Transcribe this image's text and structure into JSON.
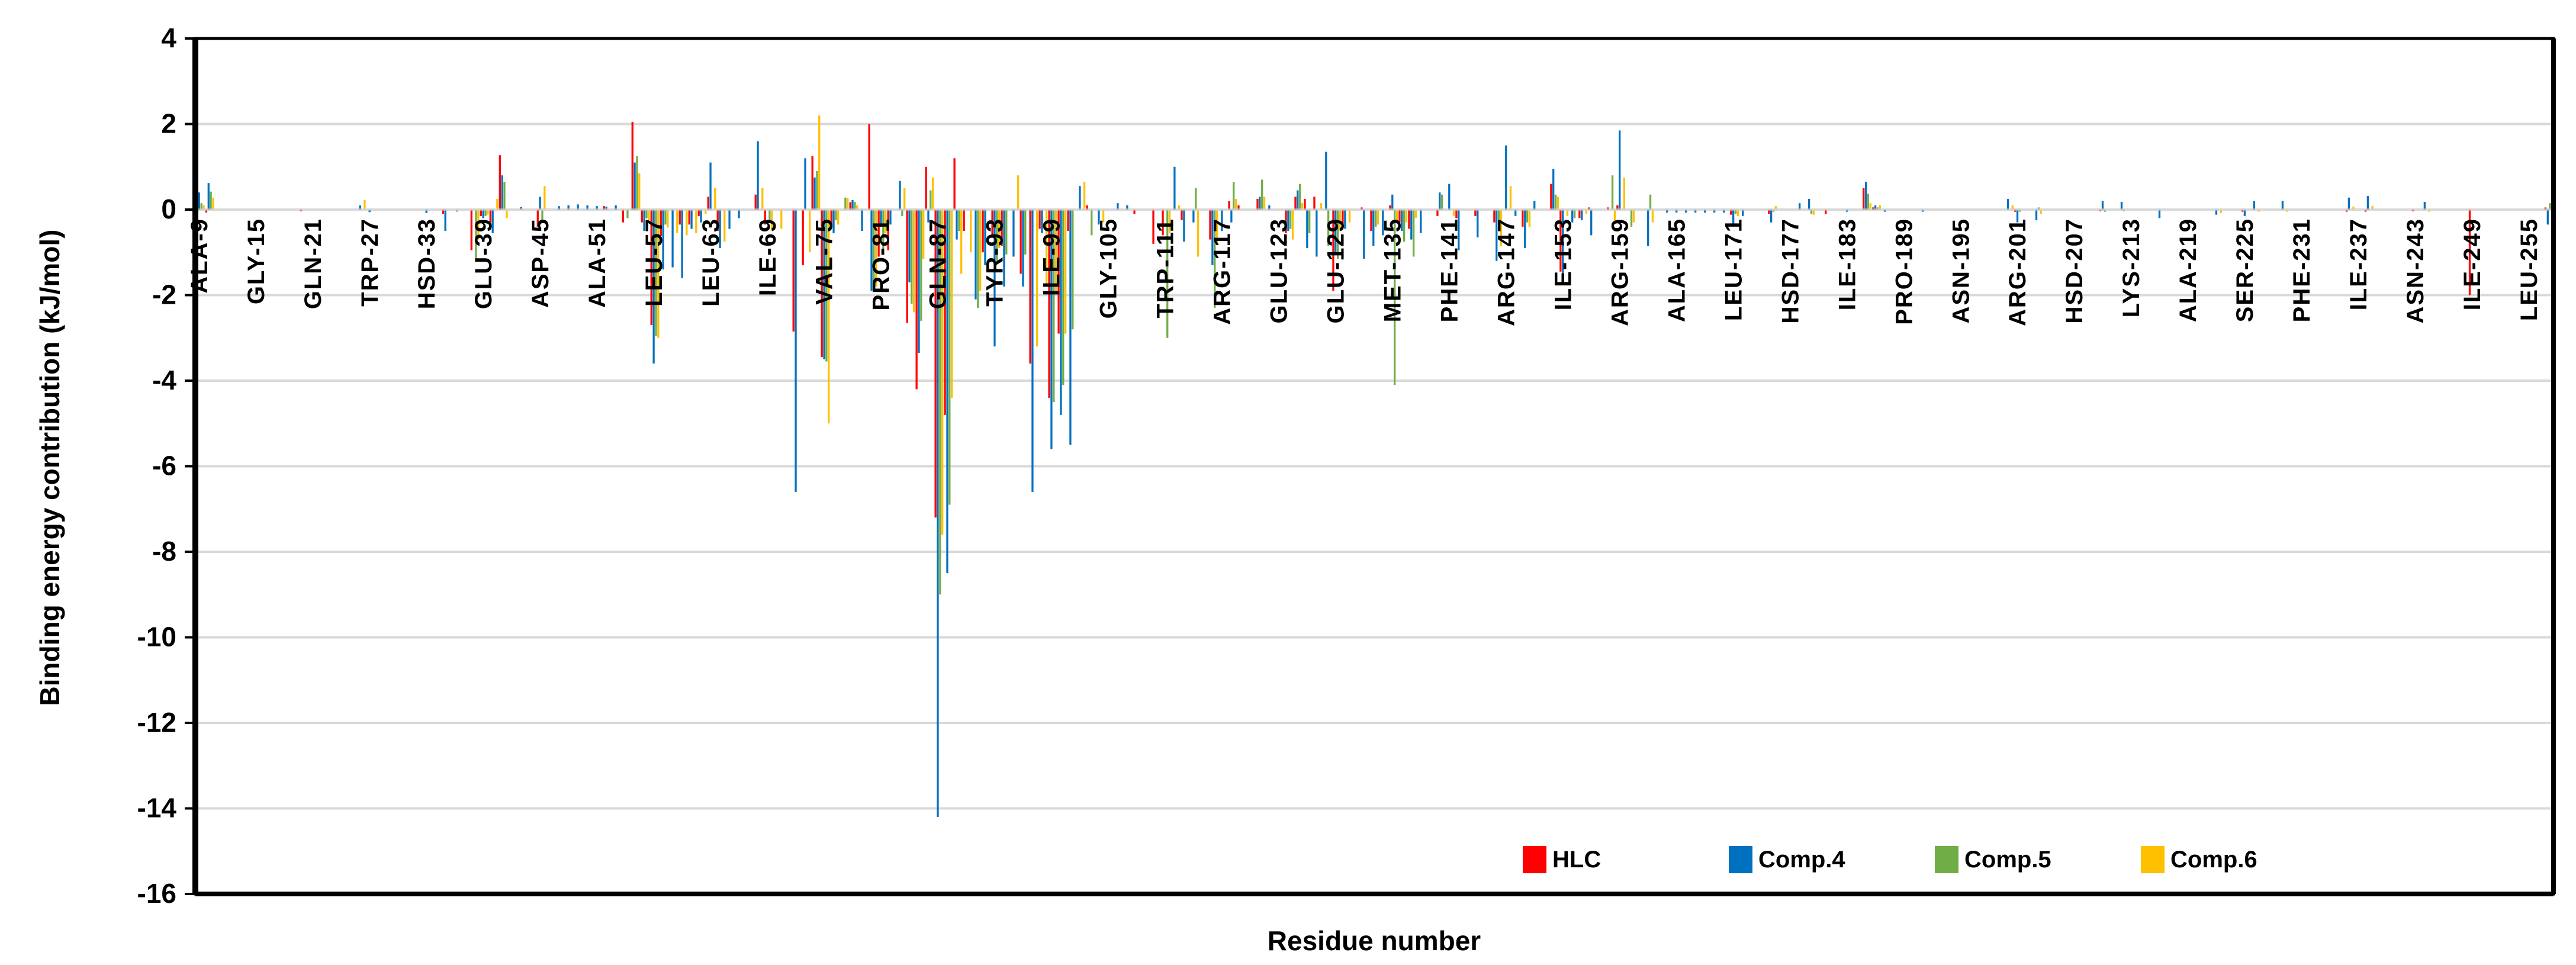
{
  "chart_data": {
    "type": "bar",
    "title": "",
    "xlabel": "Residue number",
    "ylabel": "Binding energy contribution (kJ/mol)",
    "ylim": [
      -16,
      4
    ],
    "yticks": [
      4,
      2,
      0,
      -2,
      -4,
      -6,
      -8,
      -10,
      -12,
      -14,
      -16
    ],
    "grid": "horizontal-gray",
    "legend_position": "bottom-right-inside",
    "x_range": {
      "start": 9,
      "end": 257
    },
    "x_label_every": 6,
    "x_tick_labels": [
      "ALA-9",
      "GLY-15",
      "GLN-21",
      "TRP-27",
      "HSD-33",
      "GLU-39",
      "ASP-45",
      "ALA-51",
      "LEU-57",
      "LEU-63",
      "ILE-69",
      "VAL-75",
      "PRO-81",
      "GLN-87",
      "TYR-93",
      "ILE-99",
      "GLY-105",
      "TRP-111",
      "ARG-117",
      "GLU-123",
      "GLU-129",
      "MET-135",
      "PHE-141",
      "ARG-147",
      "ILE-153",
      "ARG-159",
      "ALA-165",
      "LEU-171",
      "HSD-177",
      "ILE-183",
      "PRO-189",
      "ASN-195",
      "ARG-201",
      "HSD-207",
      "LYS-213",
      "ALA-219",
      "SER-225",
      "PHE-231",
      "ILE-237",
      "ASN-243",
      "ILE-249",
      "LEU-255"
    ],
    "values_note": "values in kJ/mol estimated from gridlines; residues not listed are ~0",
    "series": [
      {
        "name": "HLC",
        "color": "#FF0000",
        "values_by_residue": {
          "9": -0.05,
          "10": -0.07,
          "20": -0.04,
          "35": -0.1,
          "38": -0.95,
          "39": -0.15,
          "40": -0.3,
          "41": 1.27,
          "45": -0.4,
          "52": 0.08,
          "54": -0.3,
          "55": 2.05,
          "56": -0.3,
          "57": -2.7,
          "58": -0.62,
          "60": -0.35,
          "61": -0.35,
          "62": -0.15,
          "63": 0.3,
          "64": -0.5,
          "68": 0.35,
          "69": -0.35,
          "72": -2.85,
          "73": -1.3,
          "74": 1.25,
          "75": -3.45,
          "76": -0.4,
          "78": 0.17,
          "80": 2.0,
          "81": -1.1,
          "82": -0.95,
          "84": -2.65,
          "85": -4.2,
          "86": 1.0,
          "87": -7.2,
          "88": -4.8,
          "89": 1.2,
          "90": -0.5,
          "92": -1.0,
          "93": -0.6,
          "94": -0.85,
          "96": -1.5,
          "97": -3.6,
          "98": -0.45,
          "99": -4.4,
          "100": -2.9,
          "101": -0.5,
          "103": 0.1,
          "108": -0.1,
          "110": -0.8,
          "111": -0.6,
          "113": -0.25,
          "116": -0.7,
          "118": 0.2,
          "119": 0.1,
          "121": 0.25,
          "124": -0.55,
          "125": 0.3,
          "126": 0.25,
          "127": 0.3,
          "129": -1.9,
          "130": -0.35,
          "132": 0.05,
          "133": -0.5,
          "135": 0.1,
          "136": -0.3,
          "137": -0.45,
          "140": -0.15,
          "142": -0.2,
          "144": -0.15,
          "146": -0.3,
          "149": -0.4,
          "152": 0.6,
          "153": -1.45,
          "155": -0.2,
          "156": 0.05,
          "158": 0.05,
          "159": 0.1,
          "171": -0.12,
          "175": -0.1,
          "181": -0.1,
          "185": 0.5,
          "186": 0.05,
          "201": -0.05,
          "210": -0.04,
          "225": -0.05,
          "236": -0.05,
          "238": -0.05,
          "243": -0.04,
          "249": -2.0,
          "257": 0.05
        }
      },
      {
        "name": "Comp.4",
        "color": "#0070C0",
        "values_by_residue": {
          "9": 0.4,
          "10": 0.62,
          "26": 0.1,
          "27": -0.06,
          "33": -0.08,
          "35": -0.5,
          "39": -0.2,
          "40": -0.55,
          "41": 0.8,
          "43": 0.06,
          "45": 0.3,
          "47": 0.08,
          "48": 0.1,
          "49": 0.12,
          "50": 0.1,
          "51": 0.08,
          "52": 0.07,
          "53": 0.1,
          "55": 1.1,
          "56": -0.5,
          "57": -3.6,
          "58": -1.4,
          "59": -1.35,
          "60": -1.6,
          "61": -0.45,
          "62": -0.3,
          "63": 1.1,
          "64": -0.9,
          "65": -0.45,
          "66": -0.2,
          "68": 1.6,
          "72": -6.6,
          "73": 1.2,
          "74": 0.75,
          "75": -3.5,
          "76": -0.55,
          "78": 0.22,
          "79": -0.5,
          "80": -1.9,
          "81": -0.4,
          "82": -0.35,
          "83": 0.67,
          "84": -1.7,
          "85": -3.35,
          "86": -0.3,
          "87": -14.2,
          "88": -8.5,
          "89": -0.7,
          "91": -2.1,
          "92": -1.3,
          "93": -3.2,
          "94": -1.8,
          "95": -1.1,
          "96": -1.8,
          "97": -6.6,
          "98": -0.55,
          "99": -5.6,
          "100": -4.8,
          "101": -5.5,
          "102": 0.55,
          "104": -0.35,
          "106": 0.15,
          "107": 0.1,
          "112": 1.0,
          "113": -0.75,
          "114": -0.3,
          "116": -1.3,
          "117": -0.5,
          "118": -0.3,
          "121": 0.3,
          "122": 0.1,
          "124": -0.5,
          "125": 0.45,
          "126": -0.9,
          "127": -1.1,
          "128": 1.35,
          "129": -1.0,
          "130": -0.45,
          "132": -1.15,
          "133": -0.85,
          "134": -0.6,
          "135": 0.35,
          "136": -0.5,
          "137": -0.7,
          "138": -0.55,
          "140": 0.4,
          "141": 0.6,
          "142": -0.95,
          "144": -0.65,
          "146": -1.2,
          "147": 1.5,
          "148": -0.15,
          "149": -0.9,
          "150": 0.2,
          "152": 0.95,
          "153": -1.75,
          "154": -0.3,
          "155": -0.25,
          "156": -0.6,
          "159": 1.85,
          "162": -0.85,
          "164": -0.07,
          "165": -0.07,
          "166": -0.07,
          "167": -0.07,
          "168": -0.07,
          "169": -0.07,
          "170": -0.07,
          "171": -0.35,
          "172": -0.15,
          "175": -0.3,
          "178": 0.15,
          "179": 0.25,
          "183": -0.05,
          "185": 0.65,
          "186": 0.1,
          "187": -0.05,
          "191": -0.05,
          "200": 0.25,
          "201": -0.3,
          "203": -0.25,
          "210": 0.2,
          "212": 0.18,
          "216": -0.2,
          "222": -0.12,
          "225": -0.15,
          "226": 0.2,
          "229": 0.2,
          "236": 0.28,
          "238": 0.32,
          "244": 0.18,
          "257": -0.35
        }
      },
      {
        "name": "Comp.5",
        "color": "#70AD47",
        "values_by_residue": {
          "9": 0.15,
          "10": 0.42,
          "36": -0.05,
          "38": -1.2,
          "39": -0.15,
          "41": 0.65,
          "45": -0.25,
          "54": -0.2,
          "55": 1.25,
          "56": -0.2,
          "57": -2.95,
          "58": -0.35,
          "69": -0.3,
          "74": 0.9,
          "75": -3.55,
          "76": -0.25,
          "77": 0.28,
          "78": 0.18,
          "80": -1.85,
          "81": -1.05,
          "83": -0.15,
          "84": -2.2,
          "85": -2.6,
          "86": 0.45,
          "87": -9.0,
          "88": -6.9,
          "89": -0.5,
          "91": -2.3,
          "93": -1.2,
          "94": -1.05,
          "96": -1.05,
          "99": -4.5,
          "100": -4.1,
          "101": -2.8,
          "103": -0.6,
          "111": -3.0,
          "114": 0.5,
          "116": -2.3,
          "118": 0.65,
          "121": 0.7,
          "124": -0.45,
          "125": 0.6,
          "126": -0.55,
          "128": -0.85,
          "129": -1.15,
          "133": -0.4,
          "135": -4.1,
          "136": -0.75,
          "137": -1.1,
          "140": 0.35,
          "146": -0.3,
          "149": -0.3,
          "152": 0.35,
          "154": -0.2,
          "158": 0.8,
          "160": -0.4,
          "162": 0.35,
          "171": -0.1,
          "175": -0.05,
          "179": -0.1,
          "185": 0.37,
          "186": 0.05,
          "201": -0.05,
          "203": 0.05,
          "210": -0.05,
          "212": -0.04,
          "257": 0.15
        }
      },
      {
        "name": "Comp.6",
        "color": "#FFC000",
        "values_by_residue": {
          "9": 0.1,
          "10": 0.28,
          "26": 0.22,
          "38": -0.7,
          "39": -0.12,
          "40": 0.25,
          "41": -0.2,
          "45": 0.55,
          "55": 0.85,
          "56": -0.3,
          "57": -3.0,
          "58": -0.42,
          "59": -0.55,
          "60": -0.6,
          "61": -0.55,
          "62": -0.1,
          "63": 0.5,
          "64": -0.75,
          "68": 0.5,
          "69": -0.5,
          "70": -0.45,
          "73": -1.0,
          "74": 2.2,
          "75": -5.0,
          "76": -0.35,
          "77": 0.27,
          "78": 0.1,
          "80": -1.8,
          "81": -0.55,
          "83": 0.5,
          "84": -2.4,
          "85": -1.15,
          "86": 0.75,
          "87": -7.6,
          "88": -4.4,
          "89": -1.5,
          "90": -1.0,
          "91": -1.9,
          "93": -0.9,
          "95": 0.8,
          "97": -3.2,
          "98": -1.8,
          "99": -1.9,
          "100": -2.9,
          "102": 0.65,
          "104": -0.3,
          "111": -0.55,
          "112": 0.1,
          "114": -1.1,
          "116": -0.8,
          "118": 0.25,
          "121": 0.3,
          "124": -0.7,
          "125": 0.15,
          "127": 0.15,
          "129": -0.5,
          "130": -0.3,
          "133": -0.35,
          "135": -0.25,
          "136": -0.3,
          "137": -0.2,
          "141": -0.15,
          "146": -0.85,
          "147": 0.55,
          "149": -0.4,
          "152": 0.3,
          "153": -0.15,
          "155": -0.1,
          "158": -0.3,
          "159": 0.75,
          "160": -0.3,
          "162": -0.3,
          "171": -0.15,
          "175": 0.08,
          "179": -0.12,
          "185": 0.15,
          "186": 0.1,
          "200": 0.1,
          "203": -0.1,
          "222": -0.08,
          "226": -0.05,
          "229": -0.05,
          "236": 0.07,
          "238": 0.08,
          "244": -0.05,
          "257": -0.25
        }
      }
    ],
    "colors": {
      "axis_text": "#000000",
      "gridline": "#D9D9D9",
      "frame": "#000000"
    }
  }
}
